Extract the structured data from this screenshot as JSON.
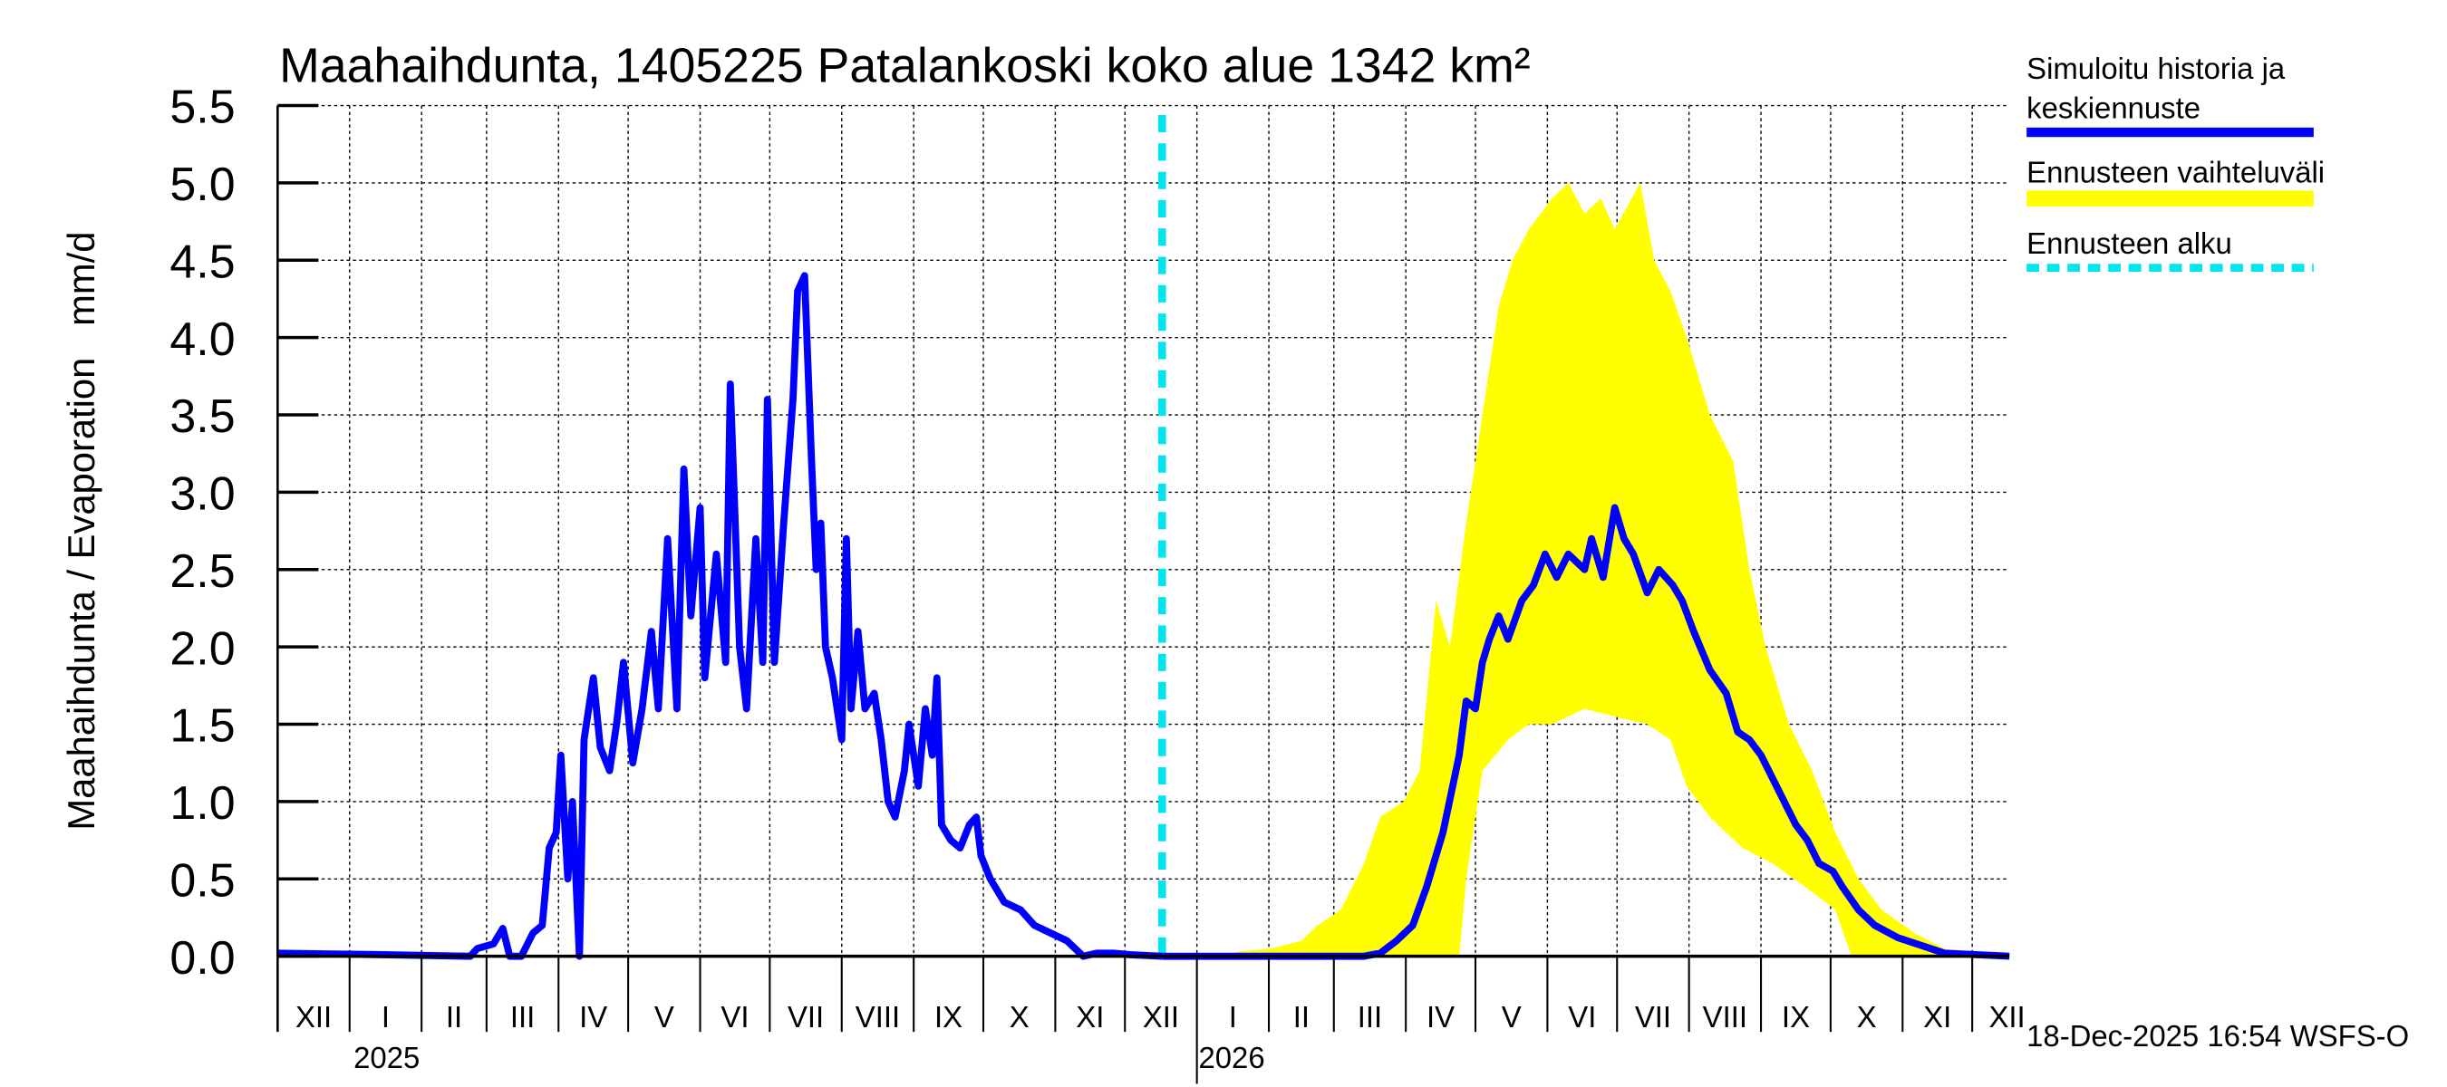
{
  "chart_data": {
    "type": "area",
    "title": "Maahaihdunta, 1405225 Patalankoski koko alue 1342 km²",
    "ylabel": "Maahaihdunta / Evaporation   mm/d",
    "xlabel": "",
    "x_unit": "days since 2024-12-01",
    "xlim": [
      0,
      746
    ],
    "ylim": [
      0,
      5.5
    ],
    "yticks": [
      "0.0",
      "0.5",
      "1.0",
      "1.5",
      "2.0",
      "2.5",
      "3.0",
      "3.5",
      "4.0",
      "4.5",
      "5.0",
      "5.5"
    ],
    "month_starts": [
      0,
      31,
      62,
      90,
      121,
      151,
      182,
      212,
      243,
      274,
      304,
      335,
      365,
      396,
      427,
      455,
      486,
      516,
      547,
      577,
      608,
      639,
      669,
      700,
      730
    ],
    "month_labels": [
      "XII",
      "I",
      "II",
      "III",
      "IV",
      "V",
      "VI",
      "VII",
      "VIII",
      "IX",
      "X",
      "XI",
      "XII",
      "I",
      "II",
      "III",
      "IV",
      "V",
      "VI",
      "VII",
      "VIII",
      "IX",
      "X",
      "XI",
      "XII"
    ],
    "years": [
      {
        "label": "2025",
        "day": 47
      },
      {
        "label": "2026",
        "day": 411
      }
    ],
    "year_tick_day": 396,
    "forecast_start_day": 381,
    "grid": true,
    "legend_placement": "right",
    "legend": [
      "Simuloitu historia ja keskiennuste",
      "Ennusteen vaihteluväli",
      "Ennusteen alku"
    ],
    "colors": {
      "history": "#0000ff",
      "band": "#ffff00",
      "forecast_start": "#00e5ee"
    },
    "series": [
      {
        "name": "Simuloitu historia",
        "points": [
          [
            0,
            0.02
          ],
          [
            45,
            0.01
          ],
          [
            83,
            0.0
          ],
          [
            86,
            0.05
          ],
          [
            93,
            0.08
          ],
          [
            97,
            0.18
          ],
          [
            100,
            0.0
          ],
          [
            105,
            0.0
          ],
          [
            110,
            0.15
          ],
          [
            114,
            0.2
          ],
          [
            117,
            0.7
          ],
          [
            120,
            0.8
          ],
          [
            122,
            1.3
          ],
          [
            125,
            0.5
          ],
          [
            127,
            1.0
          ],
          [
            130,
            0.0
          ],
          [
            132,
            1.4
          ],
          [
            136,
            1.8
          ],
          [
            139,
            1.35
          ],
          [
            143,
            1.2
          ],
          [
            146,
            1.5
          ],
          [
            149,
            1.9
          ],
          [
            153,
            1.25
          ],
          [
            157,
            1.6
          ],
          [
            161,
            2.1
          ],
          [
            164,
            1.6
          ],
          [
            168,
            2.7
          ],
          [
            172,
            1.6
          ],
          [
            175,
            3.15
          ],
          [
            178,
            2.2
          ],
          [
            182,
            2.9
          ],
          [
            184,
            1.8
          ],
          [
            189,
            2.6
          ],
          [
            193,
            1.9
          ],
          [
            195,
            3.7
          ],
          [
            199,
            2.0
          ],
          [
            202,
            1.6
          ],
          [
            206,
            2.7
          ],
          [
            209,
            1.9
          ],
          [
            211,
            3.6
          ],
          [
            214,
            1.9
          ],
          [
            218,
            2.8
          ],
          [
            222,
            3.6
          ],
          [
            224,
            4.3
          ],
          [
            227,
            4.4
          ],
          [
            230,
            3.2
          ],
          [
            232,
            2.5
          ],
          [
            234,
            2.8
          ],
          [
            236,
            2.0
          ],
          [
            239,
            1.8
          ],
          [
            243,
            1.4
          ],
          [
            245,
            2.7
          ],
          [
            247,
            1.6
          ],
          [
            250,
            2.1
          ],
          [
            253,
            1.6
          ],
          [
            257,
            1.7
          ],
          [
            260,
            1.4
          ],
          [
            263,
            1.0
          ],
          [
            266,
            0.9
          ],
          [
            270,
            1.2
          ],
          [
            272,
            1.5
          ],
          [
            276,
            1.1
          ],
          [
            279,
            1.6
          ],
          [
            282,
            1.3
          ],
          [
            284,
            1.8
          ],
          [
            286,
            0.85
          ],
          [
            290,
            0.75
          ],
          [
            294,
            0.7
          ],
          [
            298,
            0.85
          ],
          [
            301,
            0.9
          ],
          [
            303,
            0.65
          ],
          [
            307,
            0.5
          ],
          [
            313,
            0.35
          ],
          [
            320,
            0.3
          ],
          [
            326,
            0.2
          ],
          [
            333,
            0.15
          ],
          [
            340,
            0.1
          ],
          [
            347,
            0.0
          ],
          [
            353,
            0.02
          ],
          [
            360,
            0.02
          ],
          [
            367,
            0.01
          ],
          [
            381,
            0.0
          ]
        ]
      },
      {
        "name": "Keskiennuste",
        "points": [
          [
            381,
            0.0
          ],
          [
            468,
            0.0
          ],
          [
            475,
            0.02
          ],
          [
            482,
            0.1
          ],
          [
            489,
            0.2
          ],
          [
            495,
            0.45
          ],
          [
            502,
            0.8
          ],
          [
            509,
            1.3
          ],
          [
            512,
            1.65
          ],
          [
            516,
            1.6
          ],
          [
            519,
            1.9
          ],
          [
            522,
            2.05
          ],
          [
            526,
            2.2
          ],
          [
            530,
            2.05
          ],
          [
            536,
            2.3
          ],
          [
            541,
            2.4
          ],
          [
            546,
            2.6
          ],
          [
            551,
            2.45
          ],
          [
            556,
            2.6
          ],
          [
            563,
            2.5
          ],
          [
            566,
            2.7
          ],
          [
            571,
            2.45
          ],
          [
            576,
            2.9
          ],
          [
            580,
            2.7
          ],
          [
            584,
            2.6
          ],
          [
            590,
            2.35
          ],
          [
            595,
            2.5
          ],
          [
            601,
            2.4
          ],
          [
            605,
            2.3
          ],
          [
            610,
            2.1
          ],
          [
            617,
            1.85
          ],
          [
            624,
            1.7
          ],
          [
            629,
            1.45
          ],
          [
            634,
            1.4
          ],
          [
            639,
            1.3
          ],
          [
            644,
            1.15
          ],
          [
            649,
            1.0
          ],
          [
            654,
            0.85
          ],
          [
            659,
            0.75
          ],
          [
            664,
            0.6
          ],
          [
            670,
            0.55
          ],
          [
            674,
            0.45
          ],
          [
            681,
            0.3
          ],
          [
            688,
            0.2
          ],
          [
            698,
            0.12
          ],
          [
            708,
            0.07
          ],
          [
            718,
            0.02
          ],
          [
            746,
            0.0
          ]
        ]
      },
      {
        "name": "Ennusteen vaihteluväli (yläraja)",
        "points": [
          [
            381,
            0
          ],
          [
            407,
            0
          ],
          [
            414,
            0.03
          ],
          [
            428,
            0.05
          ],
          [
            441,
            0.1
          ],
          [
            448,
            0.2
          ],
          [
            458,
            0.3
          ],
          [
            468,
            0.6
          ],
          [
            475,
            0.9
          ],
          [
            485,
            1.0
          ],
          [
            492,
            1.2
          ],
          [
            499,
            2.3
          ],
          [
            505,
            2.0
          ],
          [
            512,
            2.8
          ],
          [
            519,
            3.5
          ],
          [
            526,
            4.2
          ],
          [
            532,
            4.5
          ],
          [
            539,
            4.7
          ],
          [
            549,
            4.9
          ],
          [
            556,
            5.0
          ],
          [
            563,
            4.8
          ],
          [
            570,
            4.9
          ],
          [
            576,
            4.7
          ],
          [
            587,
            5.0
          ],
          [
            593,
            4.5
          ],
          [
            600,
            4.3
          ],
          [
            607,
            4.0
          ],
          [
            617,
            3.5
          ],
          [
            627,
            3.2
          ],
          [
            634,
            2.5
          ],
          [
            641,
            2.0
          ],
          [
            651,
            1.5
          ],
          [
            661,
            1.2
          ],
          [
            671,
            0.8
          ],
          [
            681,
            0.5
          ],
          [
            691,
            0.3
          ],
          [
            705,
            0.15
          ],
          [
            718,
            0.05
          ],
          [
            732,
            0.01
          ],
          [
            746,
            0
          ]
        ]
      },
      {
        "name": "Ennusteen vaihteluväli (alaraja)",
        "points": [
          [
            381,
            0
          ],
          [
            509,
            0
          ],
          [
            512,
            0.5
          ],
          [
            519,
            1.2
          ],
          [
            530,
            1.4
          ],
          [
            539,
            1.5
          ],
          [
            549,
            1.5
          ],
          [
            563,
            1.6
          ],
          [
            576,
            1.55
          ],
          [
            590,
            1.5
          ],
          [
            600,
            1.4
          ],
          [
            607,
            1.1
          ],
          [
            617,
            0.9
          ],
          [
            631,
            0.7
          ],
          [
            644,
            0.6
          ],
          [
            658,
            0.45
          ],
          [
            671,
            0.3
          ],
          [
            678,
            0.0
          ],
          [
            746,
            0
          ]
        ]
      }
    ]
  },
  "legend": {
    "history_line1": "Simuloitu historia ja",
    "history_line2": "keskiennuste",
    "band": "Ennusteen vaihteluväli",
    "start": "Ennusteen alku"
  },
  "footer": "18-Dec-2025 16:54 WSFS-O"
}
